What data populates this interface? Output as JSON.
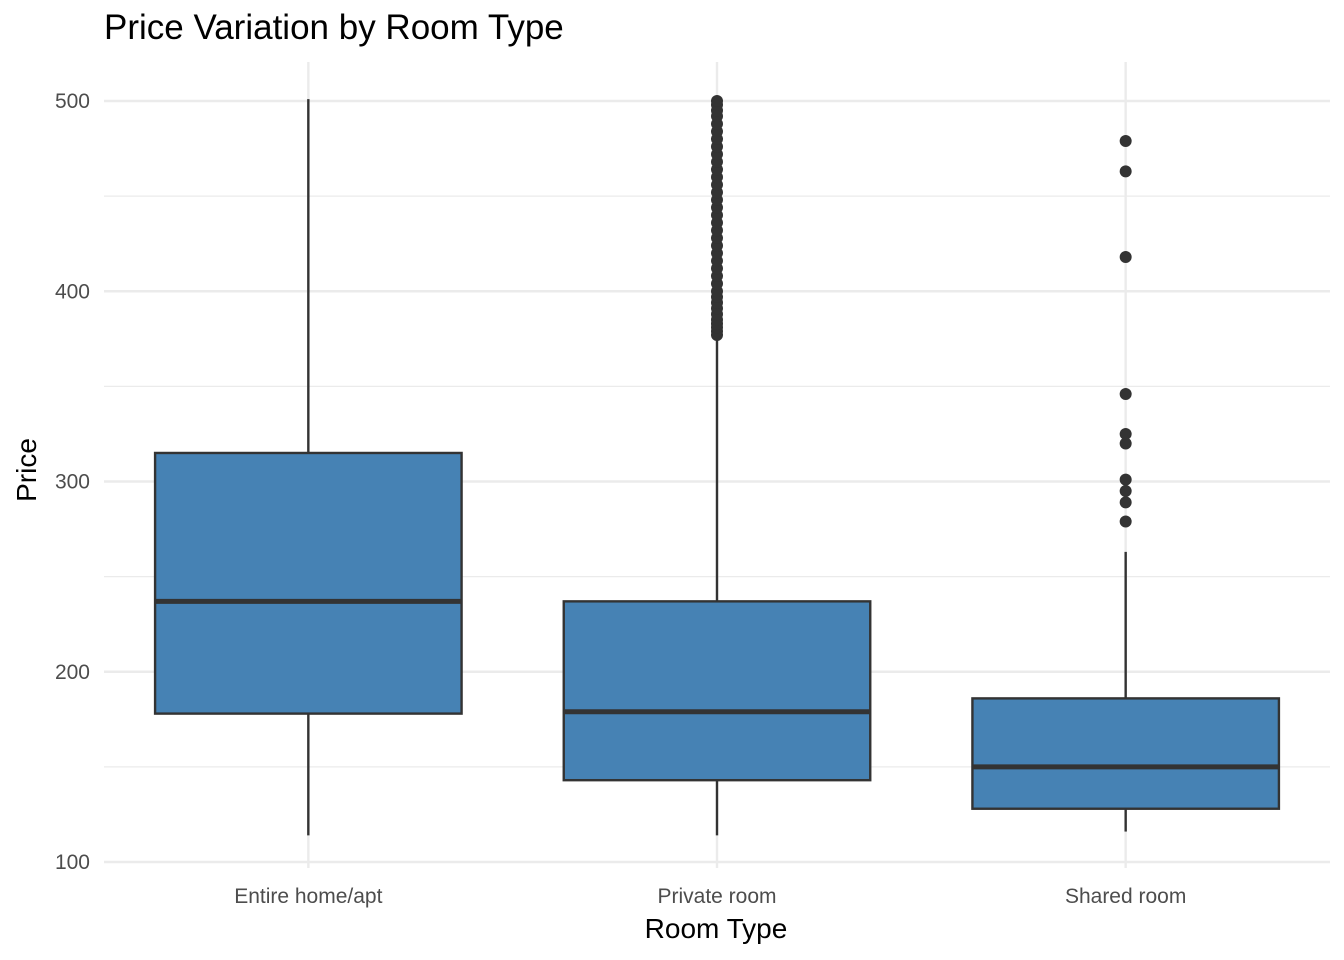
{
  "chart_data": {
    "type": "boxplot",
    "title": "Price Variation by Room Type",
    "xlabel": "Room Type",
    "ylabel": "Price",
    "ylim": [
      100,
      520
    ],
    "yticks": [
      100,
      200,
      300,
      400,
      500
    ],
    "grid": true,
    "colors": {
      "box_fill": "#4682b4",
      "box_stroke": "#333333",
      "grid": "#ebebeb"
    },
    "categories": [
      "Entire home/apt",
      "Private room",
      "Shared room"
    ],
    "boxes": [
      {
        "category": "Entire home/apt",
        "whisker_low": 114,
        "q1": 178,
        "median": 237,
        "q3": 315,
        "whisker_high": 501,
        "outliers": []
      },
      {
        "category": "Private room",
        "whisker_low": 114,
        "q1": 143,
        "median": 179,
        "q3": 237,
        "whisker_high": 375,
        "outliers": [
          377,
          379,
          381,
          383,
          385,
          388,
          391,
          394,
          397,
          400,
          404,
          408,
          412,
          416,
          420,
          424,
          428,
          432,
          436,
          440,
          444,
          448,
          452,
          456,
          460,
          464,
          468,
          472,
          476,
          480,
          484,
          488,
          492,
          495,
          498,
          500
        ]
      },
      {
        "category": "Shared room",
        "whisker_low": 116,
        "q1": 128,
        "median": 150,
        "q3": 186,
        "whisker_high": 263,
        "outliers": [
          279,
          289,
          295,
          301,
          320,
          325,
          346,
          418,
          463,
          479
        ]
      }
    ]
  }
}
